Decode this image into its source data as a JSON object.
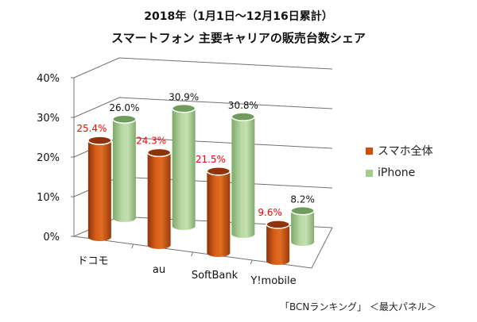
{
  "titles": {
    "line1": "2018年（1月1日～12月16日累計）",
    "line2": "スマートフォン 主要キャリアの販売台数シェア"
  },
  "source_note": "「BCNランキング」 ＜最大パネル＞",
  "colors": {
    "smartphone": "#c9500f",
    "smartphone_dark": "#8f330a",
    "iphone": "#a3cc8c",
    "iphone_dark": "#6f9b5c",
    "grid": "#707070",
    "label_red": "#ff0000",
    "label_black": "#111111"
  },
  "chart_data": {
    "type": "bar",
    "style": "3d-cylinder",
    "title": "2018年（1月1日～12月16日累計） スマートフォン 主要キャリアの販売台数シェア",
    "categories": [
      "ドコモ",
      "au",
      "SoftBank",
      "Y!mobile"
    ],
    "series": [
      {
        "name": "スマホ全体",
        "values": [
          25.4,
          24.3,
          21.5,
          9.6
        ],
        "labels": [
          "25.4%",
          "24.3%",
          "21.5%",
          "9.6%"
        ]
      },
      {
        "name": "iPhone",
        "values": [
          26.0,
          30.9,
          30.8,
          8.2
        ],
        "labels": [
          "26.0%",
          "30.9%",
          "30.8%",
          "8.2%"
        ]
      }
    ],
    "yticks": [
      "0%",
      "10%",
      "20%",
      "30%",
      "40%"
    ],
    "ylim": [
      0,
      40
    ],
    "grid": true,
    "legend": "right"
  }
}
